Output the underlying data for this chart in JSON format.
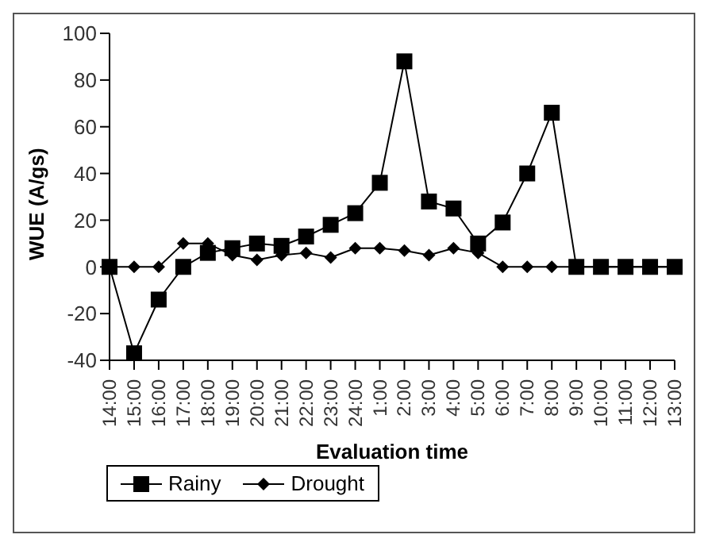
{
  "chart_data": {
    "type": "line",
    "xlabel": "Evaluation time",
    "ylabel": "WUE (A/gs)",
    "categories": [
      "14:00",
      "15:00",
      "16:00",
      "17:00",
      "18:00",
      "19:00",
      "20:00",
      "21:00",
      "22:00",
      "23:00",
      "24:00",
      "1:00",
      "2:00",
      "3:00",
      "4:00",
      "5:00",
      "6:00",
      "7:00",
      "8:00",
      "9:00",
      "10:00",
      "11:00",
      "12:00",
      "13:00"
    ],
    "series": [
      {
        "name": "Rainy",
        "color": "#000000",
        "marker": "square",
        "values": [
          0,
          -37,
          -14,
          0,
          6,
          8,
          10,
          9,
          13,
          18,
          23,
          36,
          88,
          28,
          25,
          10,
          19,
          40,
          66,
          0,
          0,
          0,
          0,
          0
        ]
      },
      {
        "name": "Drought",
        "color": "#000000",
        "marker": "diamond",
        "values": [
          0,
          0,
          0,
          10,
          10,
          5,
          3,
          5,
          6,
          4,
          8,
          8,
          7,
          5,
          8,
          6,
          0,
          0,
          0,
          0,
          0,
          0,
          0,
          0
        ]
      }
    ],
    "ylim": [
      -40,
      100
    ],
    "yticks": [
      -40,
      -20,
      0,
      20,
      40,
      60,
      80,
      100
    ],
    "grid": false,
    "legend": "bottom",
    "line_style": "solid"
  }
}
